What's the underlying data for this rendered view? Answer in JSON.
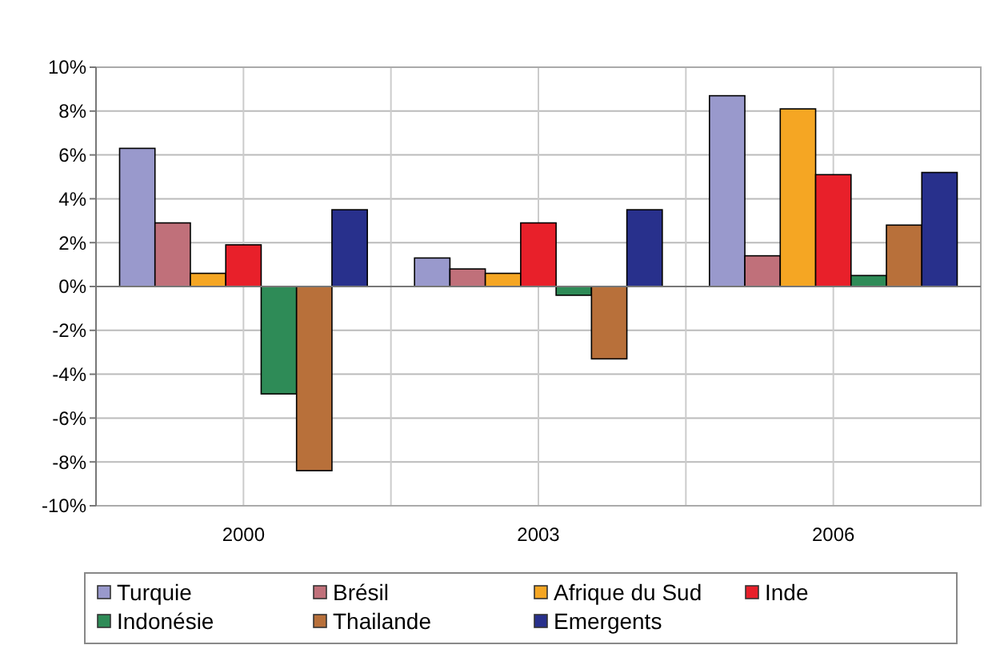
{
  "chart_data": {
    "type": "bar",
    "categories": [
      "2000",
      "2003",
      "2006"
    ],
    "series": [
      {
        "name": "Turquie",
        "color": "#9999cc",
        "values": [
          6.3,
          1.3,
          8.7
        ]
      },
      {
        "name": "Brésil",
        "color": "#c0707a",
        "values": [
          2.9,
          0.8,
          1.4
        ]
      },
      {
        "name": "Afrique du Sud",
        "color": "#f5a623",
        "values": [
          0.6,
          0.6,
          8.1
        ]
      },
      {
        "name": "Inde",
        "color": "#e8202a",
        "values": [
          1.9,
          2.9,
          5.1
        ]
      },
      {
        "name": "Indonésie",
        "color": "#2e8b57",
        "values": [
          -4.9,
          -0.4,
          0.5
        ]
      },
      {
        "name": "Thailande",
        "color": "#b8703a",
        "values": [
          -8.4,
          -3.3,
          2.8
        ]
      },
      {
        "name": "Emergents",
        "color": "#28308c",
        "values": [
          3.5,
          3.5,
          5.2
        ]
      }
    ],
    "ylim": [
      -10,
      10
    ],
    "yticks": [
      {
        "value": -10,
        "label": "-10%"
      },
      {
        "value": -8,
        "label": "-8%"
      },
      {
        "value": -6,
        "label": "-6%"
      },
      {
        "value": -4,
        "label": "-4%"
      },
      {
        "value": -2,
        "label": "-2%"
      },
      {
        "value": 0,
        "label": "0%"
      },
      {
        "value": 2,
        "label": "2%"
      },
      {
        "value": 4,
        "label": "4%"
      },
      {
        "value": 6,
        "label": "6%"
      },
      {
        "value": 8,
        "label": "8%"
      },
      {
        "value": 10,
        "label": "10%"
      }
    ],
    "grid": true,
    "legend": "bottom"
  }
}
